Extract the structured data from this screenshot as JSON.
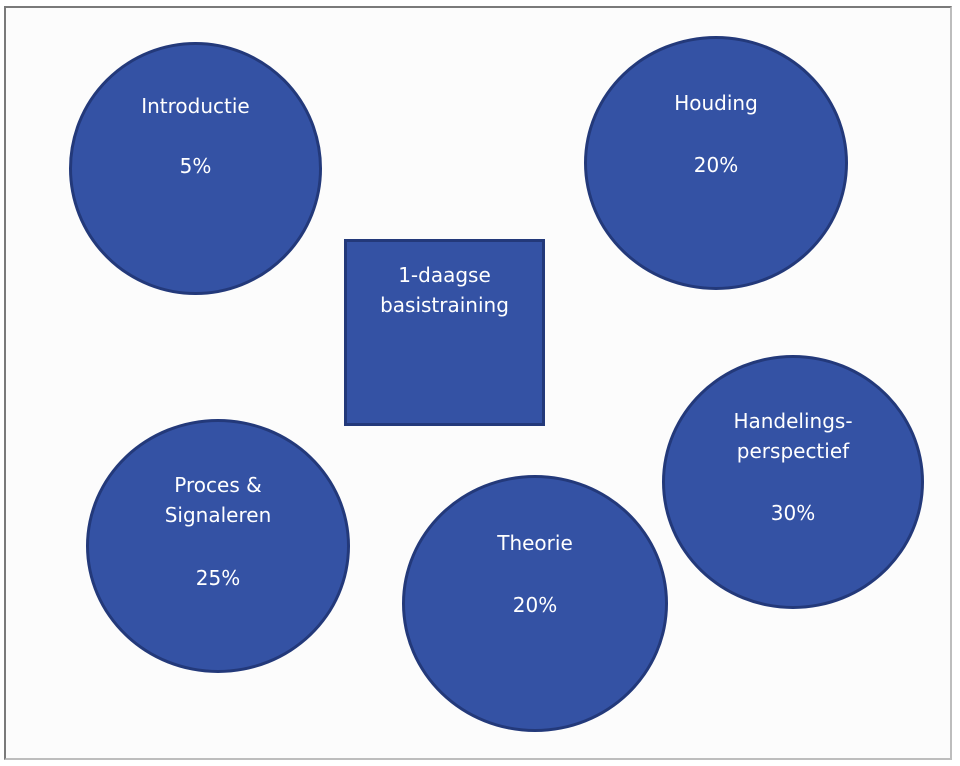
{
  "diagram": {
    "center": {
      "label": "1-daagse\nbasistraining"
    },
    "nodes": {
      "introductie": {
        "label": "Introductie",
        "value": "5%"
      },
      "houding": {
        "label": "Houding",
        "value": "20%"
      },
      "handelingsperspectief": {
        "label": "Handelings-\nperspectief",
        "value": "30%"
      },
      "proces": {
        "label": "Proces &\nSignaleren",
        "value": "25%"
      },
      "theorie": {
        "label": "Theorie",
        "value": "20%"
      }
    }
  },
  "colors": {
    "node_fill": "#3452a4",
    "node_border": "#23397a",
    "text": "#ffffff",
    "frame": "#7a7a7a"
  }
}
